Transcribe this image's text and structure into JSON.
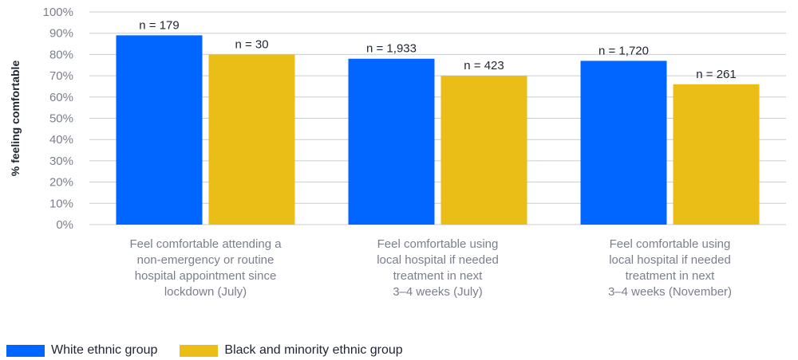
{
  "chart_data": {
    "type": "bar",
    "ylabel": "% feeling comfortable",
    "xlabel": "",
    "ylim": [
      0,
      100
    ],
    "yticks": [
      "0%",
      "10%",
      "20%",
      "30%",
      "40%",
      "50%",
      "60%",
      "70%",
      "80%",
      "90%",
      "100%"
    ],
    "grid": true,
    "legend_placement": "bottom-left",
    "categories": [
      [
        "Feel comfortable attending a",
        "non-emergency or routine",
        "hospital appointment since",
        "lockdown (July)"
      ],
      [
        "Feel comfortable using",
        "local hospital if needed",
        "treatment in next",
        "3–4 weeks (July)"
      ],
      [
        "Feel comfortable using",
        "local hospital if needed",
        "treatment in next",
        "3–4 weeks (November)"
      ]
    ],
    "series": [
      {
        "name": "White ethnic group",
        "color": "#0066ff",
        "values": [
          89,
          78,
          77
        ],
        "labels": [
          "n = 179",
          "n = 1,933",
          "n = 1,720"
        ]
      },
      {
        "name": "Black and minority ethnic group",
        "color": "#ebbd17",
        "values": [
          80,
          70,
          66
        ],
        "labels": [
          "n = 30",
          "n = 423",
          "n = 261"
        ]
      }
    ]
  }
}
